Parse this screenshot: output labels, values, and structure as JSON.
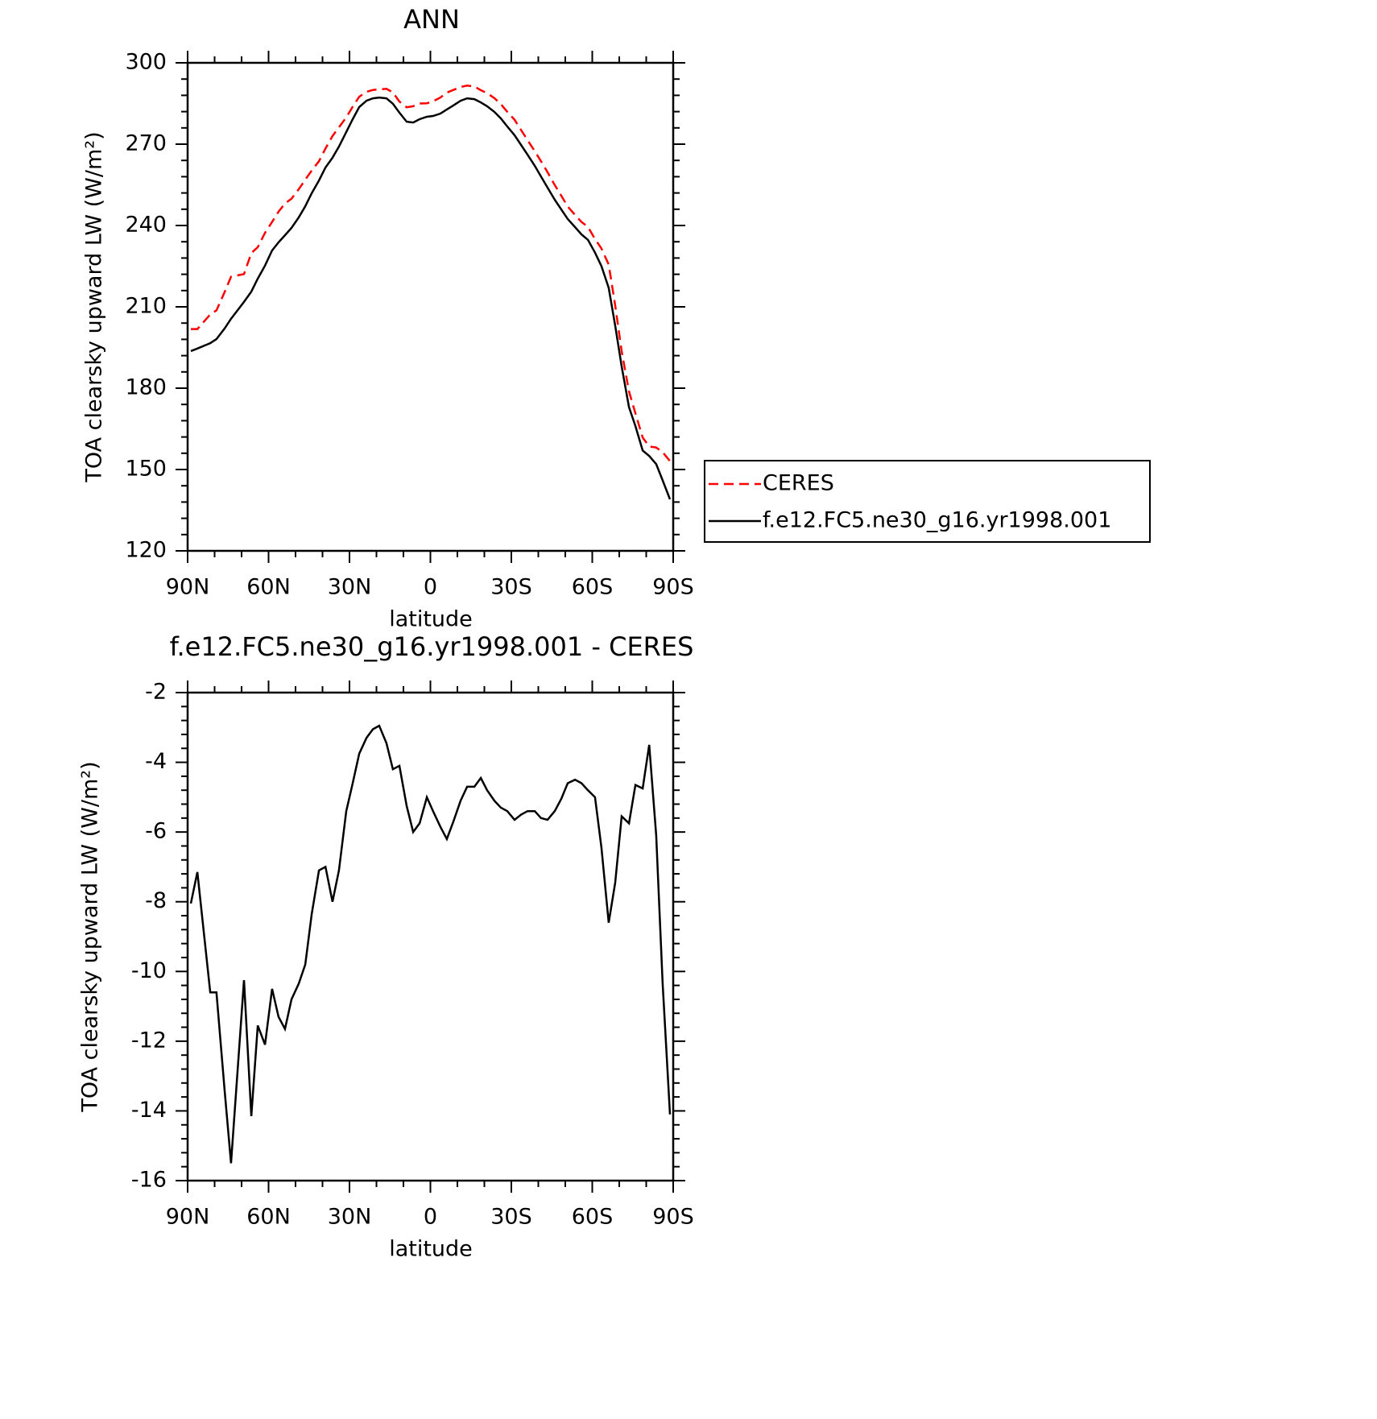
{
  "chart_data": [
    {
      "type": "line",
      "title": "ANN",
      "xlabel": "latitude",
      "ylabel": "TOA clearsky upward LW (W/m²)",
      "xlim": [
        90,
        -90
      ],
      "ylim": [
        120,
        300
      ],
      "xticks": [
        {
          "value": 90,
          "label": "90N"
        },
        {
          "value": 60,
          "label": "60N"
        },
        {
          "value": 30,
          "label": "30N"
        },
        0,
        {
          "value": -30,
          "label": "30S"
        },
        {
          "value": -60,
          "label": "60S"
        },
        {
          "value": -90,
          "label": "90S"
        }
      ],
      "yticks": [
        120,
        150,
        180,
        210,
        240,
        270,
        300
      ],
      "legend": "right",
      "x": [
        88.8,
        86.4,
        81.6,
        79.3,
        76.3,
        73.9,
        69.1,
        66.4,
        64.0,
        61.3,
        58.7,
        56.3,
        53.9,
        51.5,
        48.8,
        46.4,
        44.0,
        41.3,
        38.9,
        36.3,
        33.9,
        31.2,
        28.8,
        26.4,
        23.7,
        21.3,
        19.0,
        16.3,
        13.9,
        11.5,
        8.8,
        6.4,
        4.0,
        1.3,
        -1.0,
        -3.7,
        -6.1,
        -8.5,
        -11.2,
        -13.6,
        -16.3,
        -18.7,
        -21.0,
        -23.7,
        -26.1,
        -28.5,
        -31.2,
        -33.6,
        -36.0,
        -38.7,
        -41.0,
        -43.4,
        -46.1,
        -48.5,
        -50.9,
        -53.6,
        -56.0,
        -58.4,
        -61.0,
        -63.4,
        -66.1,
        -68.5,
        -70.9,
        -73.6,
        -76.0,
        -78.7,
        -81.1,
        -83.7,
        -86.1,
        -88.8
      ],
      "series": [
        {
          "name": "CERES",
          "color": "#ff0000",
          "linestyle": "dashed",
          "values": [
            201.8,
            201.8,
            207.2,
            208.7,
            215.4,
            221.1,
            222.1,
            229.8,
            232.0,
            237.3,
            241.3,
            245.1,
            248.1,
            249.9,
            253.4,
            256.9,
            260.3,
            263.7,
            268.4,
            273.0,
            276.2,
            279.9,
            283.8,
            287.5,
            289.3,
            290.0,
            290.2,
            290.4,
            289.1,
            285.7,
            283.6,
            284.0,
            285.0,
            285.1,
            285.8,
            287.2,
            289.0,
            290.0,
            291.1,
            291.6,
            291.3,
            289.9,
            288.8,
            287.0,
            284.8,
            281.9,
            279.0,
            275.2,
            271.5,
            267.4,
            263.7,
            259.7,
            254.9,
            251.0,
            247.0,
            243.9,
            241.3,
            239.5,
            235.0,
            231.5,
            225.6,
            210.5,
            193.6,
            178.8,
            170.7,
            161.8,
            158.5,
            158.1,
            156.4,
            153.1
          ]
        },
        {
          "name": "f.e12.FC5.ne30_g16.yr1998.001",
          "color": "#000000",
          "linestyle": "solid",
          "values": [
            193.7,
            194.6,
            196.6,
            198.1,
            202.0,
            205.6,
            211.8,
            215.6,
            220.4,
            225.2,
            230.8,
            233.8,
            236.4,
            239.1,
            243.0,
            247.1,
            251.9,
            256.6,
            261.4,
            265.0,
            269.1,
            274.5,
            279.2,
            283.7,
            286.0,
            286.9,
            287.2,
            286.9,
            284.9,
            281.6,
            278.3,
            278.0,
            279.2,
            280.1,
            280.4,
            281.3,
            282.8,
            284.3,
            286.0,
            286.9,
            286.6,
            285.4,
            284.0,
            281.9,
            279.5,
            276.5,
            273.3,
            269.7,
            266.1,
            262.0,
            258.1,
            254.0,
            249.5,
            245.9,
            242.4,
            239.4,
            236.7,
            234.7,
            230.0,
            225.0,
            217.0,
            203.0,
            188.0,
            173.0,
            166.0,
            157.0,
            155.0,
            152.0,
            146.0,
            139.0
          ]
        }
      ]
    },
    {
      "type": "line",
      "title": "f.e12.FC5.ne30_g16.yr1998.001 - CERES",
      "xlabel": "latitude",
      "ylabel": "TOA clearsky upward LW (W/m²)",
      "xlim": [
        90,
        -90
      ],
      "ylim": [
        -16,
        -2
      ],
      "xticks": [
        {
          "value": 90,
          "label": "90N"
        },
        {
          "value": 60,
          "label": "60N"
        },
        {
          "value": 30,
          "label": "30N"
        },
        0,
        {
          "value": -30,
          "label": "30S"
        },
        {
          "value": -60,
          "label": "60S"
        },
        {
          "value": -90,
          "label": "90S"
        }
      ],
      "yticks": [
        -16,
        -14,
        -12,
        -10,
        -8,
        -6,
        -4,
        -2
      ],
      "x": [
        88.8,
        86.4,
        81.6,
        79.3,
        76.3,
        73.9,
        69.1,
        66.4,
        64.0,
        61.3,
        58.7,
        56.3,
        53.9,
        51.5,
        48.8,
        46.4,
        44.0,
        41.3,
        38.9,
        36.3,
        33.9,
        31.2,
        28.8,
        26.4,
        23.7,
        21.3,
        19.0,
        16.3,
        13.9,
        11.5,
        8.8,
        6.4,
        4.0,
        1.3,
        -1.0,
        -3.7,
        -6.1,
        -8.5,
        -11.2,
        -13.6,
        -16.3,
        -18.7,
        -21.0,
        -23.7,
        -26.1,
        -28.5,
        -31.2,
        -33.6,
        -36.0,
        -38.7,
        -41.0,
        -43.4,
        -46.1,
        -48.5,
        -50.9,
        -53.6,
        -56.0,
        -58.4,
        -61.0,
        -63.4,
        -66.1,
        -68.5,
        -70.9,
        -73.6,
        -76.0,
        -78.7,
        -81.1,
        -83.7,
        -86.1,
        -88.8
      ],
      "series": [
        {
          "color": "#000000",
          "linestyle": "solid",
          "values": [
            -8.05,
            -7.15,
            -10.6,
            -10.6,
            -13.4,
            -15.5,
            -10.25,
            -14.15,
            -11.55,
            -12.1,
            -10.5,
            -11.3,
            -11.65,
            -10.8,
            -10.35,
            -9.8,
            -8.35,
            -7.1,
            -7.0,
            -8.0,
            -7.1,
            -5.4,
            -4.6,
            -3.75,
            -3.3,
            -3.05,
            -2.95,
            -3.45,
            -4.2,
            -4.1,
            -5.25,
            -6.0,
            -5.75,
            -5.0,
            -5.4,
            -5.85,
            -6.2,
            -5.7,
            -5.1,
            -4.7,
            -4.7,
            -4.45,
            -4.8,
            -5.1,
            -5.3,
            -5.4,
            -5.65,
            -5.5,
            -5.4,
            -5.4,
            -5.6,
            -5.65,
            -5.4,
            -5.05,
            -4.6,
            -4.5,
            -4.6,
            -4.8,
            -5.0,
            -6.45,
            -8.6,
            -7.45,
            -5.55,
            -5.75,
            -4.65,
            -4.75,
            -3.5,
            -6.1,
            -10.35,
            -14.1
          ]
        }
      ]
    }
  ]
}
